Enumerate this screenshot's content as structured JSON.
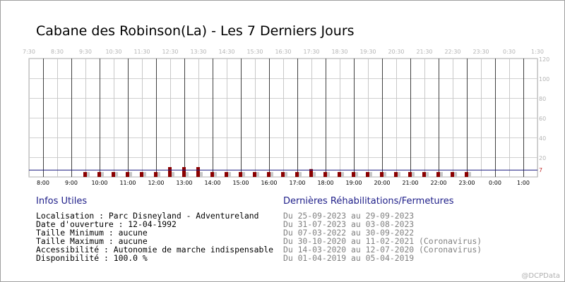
{
  "title": "Cabane des Robinson(La) - Les 7 Derniers Jours",
  "chart_data": {
    "type": "bar",
    "top_time_labels": [
      "7:30",
      "8:30",
      "9:30",
      "10:30",
      "11:30",
      "12:30",
      "13:30",
      "14:30",
      "15:30",
      "16:30",
      "17:30",
      "18:30",
      "19:30",
      "20:30",
      "21:30",
      "22:30",
      "23:30",
      "0:30",
      "1:30"
    ],
    "bottom_time_labels": [
      "8:00",
      "9:00",
      "10:00",
      "11:00",
      "12:00",
      "13:00",
      "14:00",
      "15:00",
      "16:00",
      "17:00",
      "18:00",
      "19:00",
      "20:00",
      "21:00",
      "22:00",
      "23:00",
      "0:00",
      "1:00"
    ],
    "y_tick_labels": [
      "20",
      "40",
      "60",
      "80",
      "100",
      "120"
    ],
    "ylim": [
      0,
      120
    ],
    "reference_line": {
      "value": 7,
      "label": "7",
      "color": "#1a1a80"
    },
    "series": [
      {
        "color": "#8b0000",
        "values": [
          5,
          5,
          5,
          5,
          5,
          5,
          10,
          10,
          10,
          5,
          5,
          5,
          5,
          5,
          5,
          5,
          8,
          5,
          5,
          5,
          5,
          5,
          5,
          5,
          5,
          5,
          5,
          5
        ]
      },
      {
        "color": "#c8c8c8",
        "values": [
          5,
          5,
          5,
          5,
          5,
          5,
          5,
          5,
          5,
          5,
          5,
          5,
          5,
          5,
          5,
          5,
          5,
          5,
          5,
          5,
          5,
          5,
          5,
          5,
          5,
          5,
          5,
          5
        ]
      }
    ],
    "bar_start_time": "9:30",
    "grid": true
  },
  "info": {
    "heading": "Infos Utiles",
    "lines": [
      "Localisation : Parc Disneyland - Adventureland",
      "Date d'ouverture : 12-04-1992",
      "Taille Minimum : aucune",
      "Taille Maximum : aucune",
      "Accessibilité : Autonomie de marche indispensable",
      "Disponibilité : 100.0 %"
    ]
  },
  "rehab": {
    "heading": "Dernières Réhabilitations/Fermetures",
    "lines": [
      "Du 25-09-2023 au 29-09-2023",
      "Du 31-07-2023 au 03-08-2023",
      "Du 07-03-2022 au 30-09-2022",
      "Du 30-10-2020 au 11-02-2021 (Coronavirus)",
      "Du 14-03-2020 au 12-07-2020 (Coronavirus)",
      "Du 01-04-2019 au 05-04-2019"
    ]
  },
  "watermark": "@DCPData"
}
